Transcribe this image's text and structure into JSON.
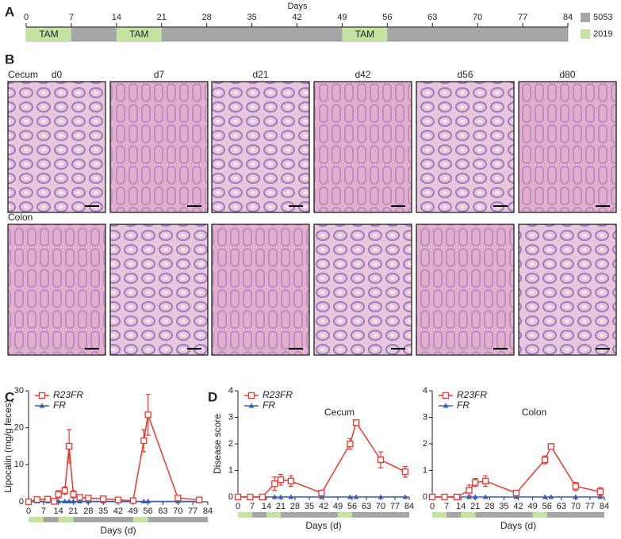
{
  "panels": [
    "A",
    "B",
    "C",
    "D"
  ],
  "timeline": {
    "axis_label": "Days",
    "ticks": [
      0,
      7,
      14,
      21,
      28,
      35,
      42,
      49,
      56,
      63,
      70,
      77,
      84
    ],
    "span": [
      0,
      84
    ],
    "segments": [
      {
        "label": "TAM",
        "start": 0,
        "end": 7
      },
      {
        "label": "TAM",
        "start": 14,
        "end": 21
      },
      {
        "label": "TAM",
        "start": 49,
        "end": 56
      }
    ],
    "legend": [
      {
        "name": "5053",
        "color": "#a6a6a6"
      },
      {
        "name": "2019",
        "color": "#c4e3a0"
      }
    ]
  },
  "histology": {
    "rows": [
      "Cecum",
      "Colon"
    ],
    "columns": [
      "d0",
      "d7",
      "d21",
      "d42",
      "d56",
      "d80"
    ]
  },
  "chart_data": [
    {
      "type": "line",
      "ylabel": "Lipocalin (mg/g feces)",
      "xlabel": "Days (d)",
      "xlim": [
        0,
        84
      ],
      "xticks": [
        0,
        7,
        14,
        21,
        28,
        35,
        42,
        49,
        56,
        63,
        70,
        77,
        84
      ],
      "ylim": [
        0,
        30
      ],
      "yticks": [
        0,
        10,
        20,
        30
      ],
      "legend": "upper left",
      "x": [
        0,
        4,
        9,
        12,
        14,
        17,
        19,
        21,
        24,
        28,
        35,
        42,
        49,
        54,
        56,
        70,
        80
      ],
      "series": [
        {
          "name": "R23FR",
          "color": "#e8382e",
          "marker": "square",
          "values": [
            0,
            0.6,
            0.7,
            0.1,
            2,
            3,
            15,
            2,
            1.2,
            1,
            0.8,
            0.5,
            0.3,
            16.5,
            23.5,
            1,
            0.5
          ],
          "errors": [
            0,
            0.2,
            0.2,
            0.1,
            1,
            1,
            4.5,
            1,
            0.3,
            0.2,
            0.2,
            0.2,
            0.1,
            3,
            5.5,
            0.2,
            0.2
          ]
        },
        {
          "name": "FR",
          "color": "#3a5fb0",
          "marker": "triangle",
          "values": [
            0.1,
            0.1,
            0.1,
            0.1,
            0.1,
            0.1,
            0.1,
            0.1,
            0.1,
            0.1,
            0.1,
            0.1,
            0.1,
            0.1,
            0.1,
            0.1,
            0.1
          ]
        }
      ]
    },
    {
      "type": "line",
      "title": "Cecum",
      "ylabel": "Disease score",
      "xlabel": "Days (d)",
      "xlim": [
        0,
        84
      ],
      "xticks": [
        0,
        7,
        14,
        21,
        28,
        35,
        42,
        49,
        56,
        63,
        70,
        77,
        84
      ],
      "ylim": [
        0,
        4
      ],
      "yticks": [
        0,
        1,
        2,
        3,
        4
      ],
      "legend": "upper left",
      "x": [
        0,
        6,
        12,
        18,
        21,
        26,
        41,
        55,
        58,
        70,
        82
      ],
      "series": [
        {
          "name": "R23FR",
          "color": "#e8382e",
          "marker": "square",
          "values": [
            0,
            0,
            0,
            0.5,
            0.65,
            0.6,
            0.15,
            2.0,
            2.8,
            1.4,
            0.95
          ],
          "errors": [
            0,
            0,
            0,
            0.25,
            0.2,
            0.2,
            0.1,
            0.2,
            0.1,
            0.3,
            0.2
          ]
        },
        {
          "name": "FR",
          "color": "#3a5fb0",
          "marker": "triangle",
          "values": [
            0,
            0,
            0,
            0,
            0,
            0,
            0,
            0,
            0,
            0,
            0
          ]
        }
      ]
    },
    {
      "type": "line",
      "title": "Colon",
      "xlabel": "Days (d)",
      "xlim": [
        0,
        84
      ],
      "xticks": [
        0,
        7,
        14,
        21,
        28,
        35,
        42,
        49,
        56,
        63,
        70,
        77,
        84
      ],
      "ylim": [
        0,
        4
      ],
      "yticks": [
        0,
        1,
        2,
        3,
        4
      ],
      "legend": "upper left",
      "x": [
        0,
        6,
        12,
        18,
        21,
        26,
        41,
        55,
        58,
        70,
        82
      ],
      "series": [
        {
          "name": "R23FR",
          "color": "#e8382e",
          "marker": "square",
          "values": [
            0,
            0,
            0,
            0.25,
            0.55,
            0.6,
            0.15,
            1.4,
            1.9,
            0.4,
            0.2
          ],
          "errors": [
            0,
            0,
            0,
            0.2,
            0.15,
            0.2,
            0.1,
            0.15,
            0.1,
            0.15,
            0.15
          ]
        },
        {
          "name": "FR",
          "color": "#3a5fb0",
          "marker": "triangle",
          "values": [
            0,
            0,
            0,
            0,
            0,
            0,
            0,
            0,
            0,
            0,
            0
          ]
        }
      ]
    }
  ]
}
